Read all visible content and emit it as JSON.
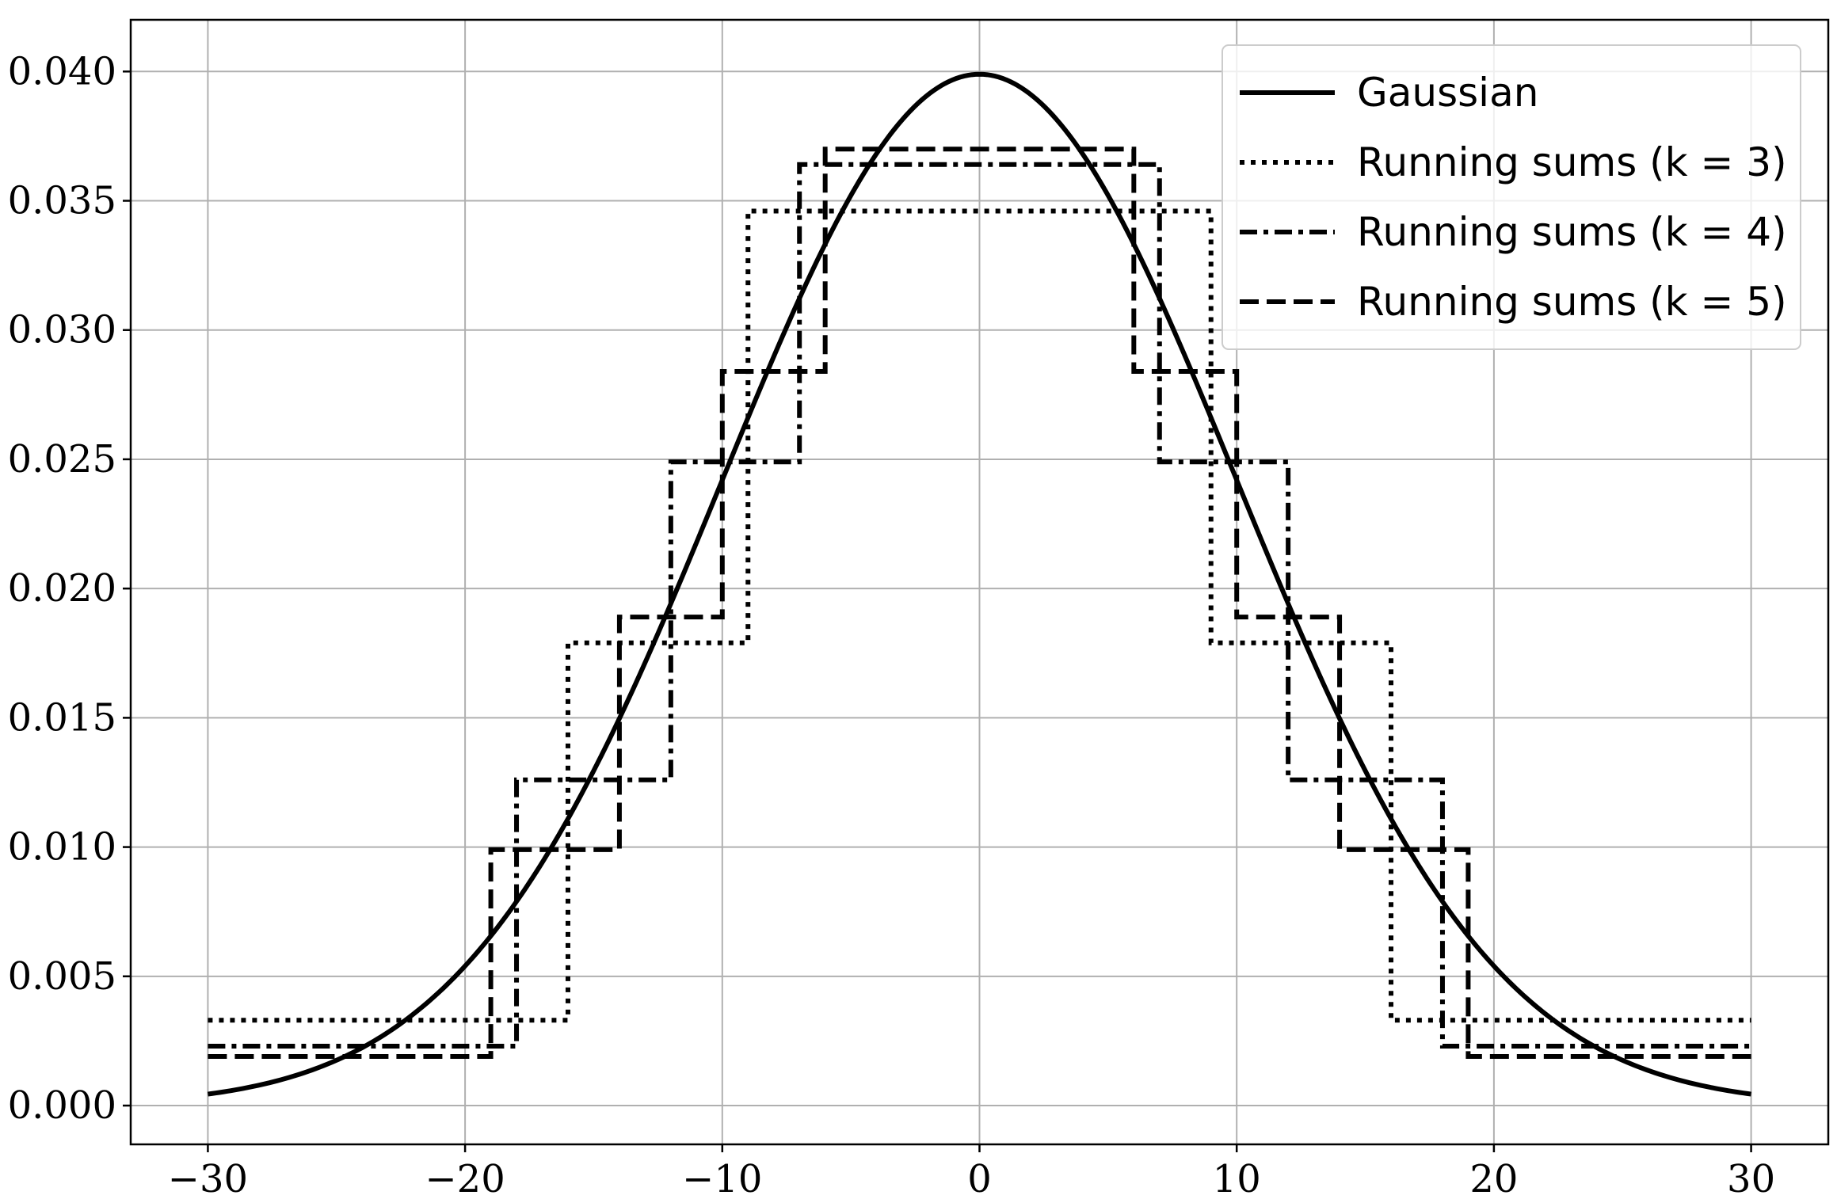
{
  "chart_data": {
    "type": "line",
    "title": "",
    "xlabel": "",
    "ylabel": "",
    "xlim": [
      -33,
      33
    ],
    "ylim": [
      -0.0015,
      0.042
    ],
    "grid": true,
    "legend_position": "top-right",
    "x_ticks": [
      -30,
      -20,
      -10,
      0,
      10,
      20,
      30
    ],
    "x_tick_labels": [
      "−30",
      "−20",
      "−10",
      "0",
      "10",
      "20",
      "30"
    ],
    "y_ticks": [
      0.0,
      0.005,
      0.01,
      0.015,
      0.02,
      0.025,
      0.03,
      0.035,
      0.04
    ],
    "y_tick_labels": [
      "0.000",
      "0.005",
      "0.010",
      "0.015",
      "0.020",
      "0.025",
      "0.030",
      "0.035",
      "0.040"
    ],
    "series": [
      {
        "name": "Gaussian",
        "style": "solid",
        "kind": "gaussian",
        "mean": 0,
        "sigma": 10,
        "x_range": [
          -30,
          30
        ]
      },
      {
        "name": "Running sums (k = 3)",
        "style": "dotted",
        "kind": "step",
        "x": [
          -30,
          -16,
          -16,
          -9,
          -9,
          9,
          9,
          16,
          16,
          30
        ],
        "y": [
          0.0033,
          0.0033,
          0.0179,
          0.0179,
          0.0346,
          0.0346,
          0.0179,
          0.0179,
          0.0033,
          0.0033
        ]
      },
      {
        "name": "Running sums (k = 4)",
        "style": "dashdot",
        "kind": "step",
        "x": [
          -30,
          -18,
          -18,
          -12,
          -12,
          -7,
          -7,
          7,
          7,
          12,
          12,
          18,
          18,
          30
        ],
        "y": [
          0.0023,
          0.0023,
          0.0126,
          0.0126,
          0.0249,
          0.0249,
          0.0364,
          0.0364,
          0.0249,
          0.0249,
          0.0126,
          0.0126,
          0.0023,
          0.0023
        ]
      },
      {
        "name": "Running sums (k = 5)",
        "style": "dashed",
        "kind": "step",
        "x": [
          -30,
          -19,
          -19,
          -14,
          -14,
          -10,
          -10,
          -6,
          -6,
          6,
          6,
          10,
          10,
          14,
          14,
          19,
          19,
          30
        ],
        "y": [
          0.0019,
          0.0019,
          0.0099,
          0.0099,
          0.0189,
          0.0189,
          0.0284,
          0.0284,
          0.037,
          0.037,
          0.0284,
          0.0284,
          0.0189,
          0.0189,
          0.0099,
          0.0099,
          0.0019,
          0.0019
        ]
      }
    ],
    "styles": {
      "line_color": "#000000",
      "grid_color": "#b0b0b0"
    }
  }
}
